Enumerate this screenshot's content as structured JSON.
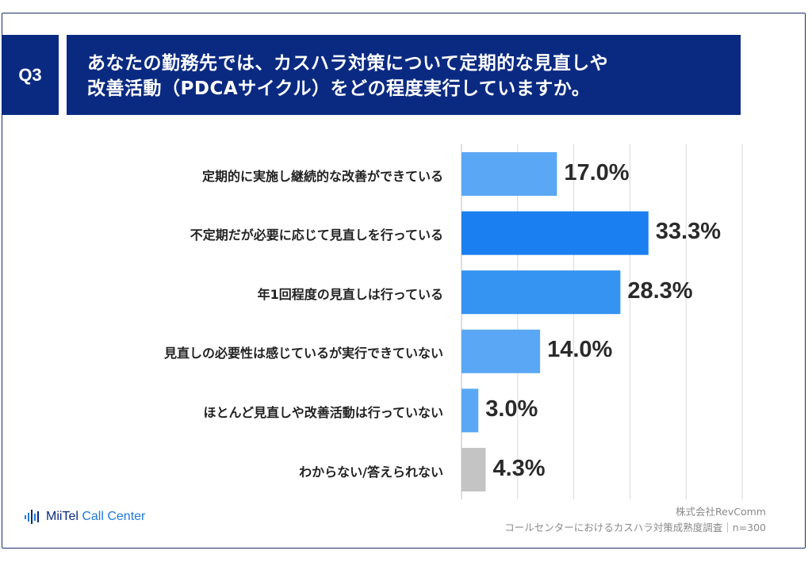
{
  "header": {
    "badge": "Q3",
    "title_line1": "あなたの勤務先では、カスハラ対策について定期的な見直しや",
    "title_line2": "改善活動（PDCAサイクル）をどの程度実行していますか。"
  },
  "chart_data": {
    "type": "bar",
    "orientation": "horizontal",
    "categories": [
      "定期的に実施し継続的な改善ができている",
      "不定期だが必要に応じて見直しを行っている",
      "年1回程度の見直しは行っている",
      "見直しの必要性は感じているが実行できていない",
      "ほとんど見直しや改善活動は行っていない",
      "わからない/答えられない"
    ],
    "values": [
      17.0,
      33.3,
      28.3,
      14.0,
      3.0,
      4.3
    ],
    "value_labels": [
      "17.0%",
      "33.3%",
      "28.3%",
      "14.0%",
      "3.0%",
      "4.3%"
    ],
    "bar_colors": [
      "#5aa8f5",
      "#1a7ff0",
      "#3593f2",
      "#5aa8f5",
      "#5aa8f5",
      "#c4c4c4"
    ],
    "xlim": [
      0,
      50
    ],
    "grid": true,
    "gridline_count": 5
  },
  "footer": {
    "brand_main": "MiiTel",
    "brand_accent": "Call Center",
    "source_line1": "株式会社RevComm",
    "source_line2": "コールセンターにおけるカスハラ対策成熟度調査｜n=300"
  }
}
